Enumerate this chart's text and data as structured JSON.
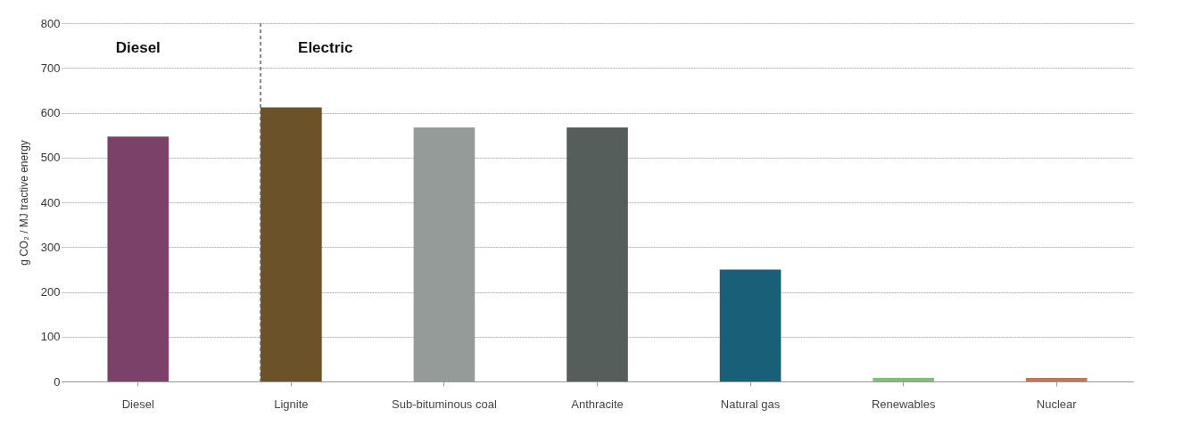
{
  "chart_data": {
    "type": "bar",
    "ylabel": "g CO₂ / MJ tractive energy",
    "categories": [
      "Diesel",
      "Lignite",
      "Sub-bituminous coal",
      "Anthracite",
      "Natural gas",
      "Renewables",
      "Nuclear"
    ],
    "values": [
      547,
      612,
      567,
      567,
      250,
      8,
      8
    ],
    "colors": [
      "#7b4168",
      "#6b5228",
      "#959b98",
      "#555e5b",
      "#1a5f78",
      "#7fbf7a",
      "#c0785a"
    ],
    "ylim": [
      0,
      800
    ],
    "yticks": [
      0,
      100,
      200,
      300,
      400,
      500,
      600,
      700,
      800
    ],
    "grid": "y",
    "ref_lines": [
      {
        "axis": "x",
        "value": "Lignite",
        "label": "Electric",
        "line_style": "dashed",
        "color": "#666666"
      }
    ],
    "annotations": [
      "Diesel"
    ]
  }
}
